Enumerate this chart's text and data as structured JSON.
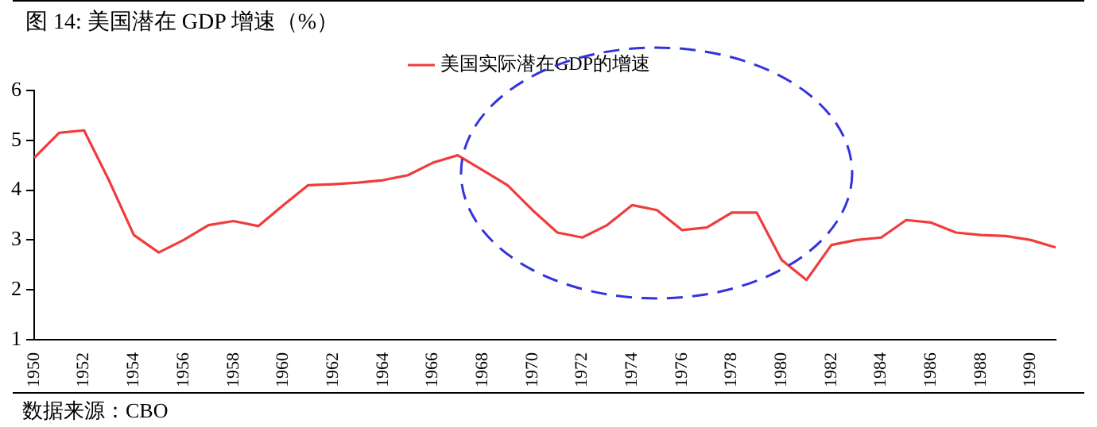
{
  "chart_data": {
    "type": "line",
    "title": "图 14:  美国潜在 GDP 增速（%）",
    "categories": [
      "1950",
      null,
      "1952",
      null,
      "1954",
      null,
      "1956",
      null,
      "1958",
      null,
      "1960",
      null,
      "1962",
      null,
      "1964",
      null,
      "1966",
      null,
      "1968",
      null,
      "1970",
      null,
      "1972",
      null,
      "1974",
      null,
      "1976",
      null,
      "1978",
      null,
      "1980",
      null,
      "1982",
      null,
      "1984",
      null,
      "1986",
      null,
      "1988",
      null,
      "1990",
      null
    ],
    "series": [
      {
        "name": "美国实际潜在GDP的增速",
        "color": "#f03c3c",
        "values": [
          4.65,
          5.15,
          5.2,
          4.2,
          3.1,
          2.75,
          3.0,
          3.3,
          3.38,
          3.28,
          3.7,
          4.1,
          4.12,
          4.15,
          4.2,
          4.3,
          4.55,
          4.7,
          4.4,
          4.1,
          3.6,
          3.15,
          3.05,
          3.3,
          3.7,
          3.6,
          3.2,
          3.25,
          3.55,
          3.55,
          2.6,
          2.2,
          2.9,
          3.0,
          3.05,
          3.4,
          3.35,
          3.15,
          3.1,
          3.08,
          3.0,
          2.85
        ]
      }
    ],
    "ylim": [
      1,
      6
    ],
    "yticks": [
      1,
      2,
      3,
      4,
      5,
      6
    ],
    "grid": false,
    "legend": "top",
    "marker": "none",
    "line_style": "solid",
    "annotations": [
      "数据来源：CBO"
    ]
  }
}
